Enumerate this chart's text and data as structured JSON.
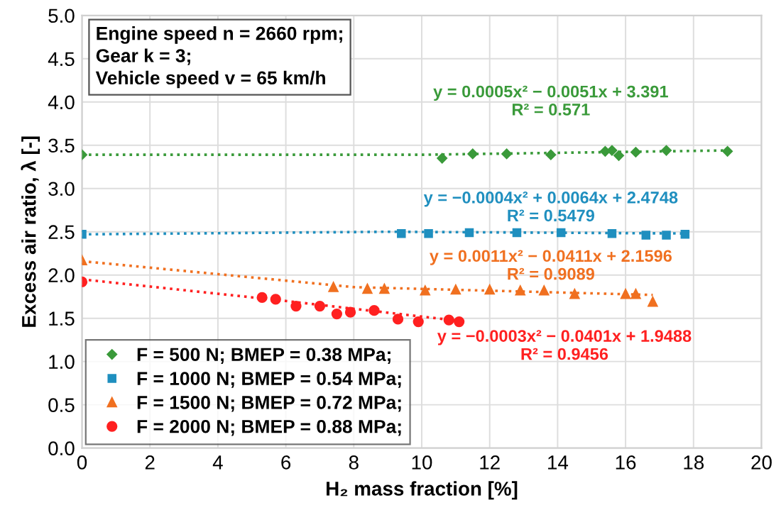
{
  "chart_data": {
    "type": "scatter",
    "xlabel": "H₂ mass fraction [%]",
    "ylabel": "Excess air ratio, λ [-]",
    "xlim": [
      0,
      20
    ],
    "xticks": [
      0,
      2,
      4,
      6,
      8,
      10,
      12,
      14,
      16,
      18,
      20
    ],
    "ylim": [
      0,
      5
    ],
    "yticks": [
      {
        "value": 0,
        "label": "0.0"
      },
      0.5,
      {
        "value": 1,
        "label": "1.0"
      },
      1.5,
      {
        "value": 2,
        "label": "2.0"
      },
      2.5,
      {
        "value": 3,
        "label": "3.0"
      },
      3.5,
      {
        "value": 4,
        "label": "4.0"
      },
      4.5,
      {
        "value": 5,
        "label": "5.0"
      }
    ],
    "grid": true,
    "legend": "bottom left",
    "series": [
      {
        "name": "F = 500 N; BMEP = 0.38 MPa;",
        "color": "#3a9a3a",
        "marker": "diamond",
        "x": [
          0,
          10.6,
          11.5,
          12.5,
          13.8,
          15.4,
          15.6,
          15.8,
          16.3,
          17.2,
          19.0
        ],
        "values": [
          3.39,
          3.35,
          3.4,
          3.4,
          3.39,
          3.43,
          3.44,
          3.38,
          3.42,
          3.44,
          3.43
        ]
      },
      {
        "name": "F = 1000 N; BMEP = 0.54 MPa;",
        "color": "#1f8fbf",
        "marker": "square",
        "x": [
          0,
          9.4,
          10.2,
          11.4,
          12.8,
          14.1,
          15.6,
          16.6,
          17.2,
          17.75
        ],
        "values": [
          2.47,
          2.48,
          2.48,
          2.49,
          2.49,
          2.49,
          2.48,
          2.46,
          2.46,
          2.47
        ]
      },
      {
        "name": "F = 1500 N; BMEP = 0.72 MPa;",
        "color": "#f07020",
        "marker": "triangle",
        "x": [
          0,
          7.4,
          8.4,
          8.9,
          10.1,
          11.0,
          12.0,
          12.9,
          13.6,
          14.5,
          16.0,
          16.3,
          16.8
        ],
        "values": [
          2.17,
          1.86,
          1.84,
          1.84,
          1.82,
          1.83,
          1.83,
          1.82,
          1.82,
          1.78,
          1.78,
          1.78,
          1.69
        ]
      },
      {
        "name": "F = 2000 N; BMEP = 0.88 MPa;",
        "color": "#ff2020",
        "marker": "circle",
        "x": [
          0,
          5.3,
          5.7,
          6.3,
          7.0,
          7.5,
          7.9,
          8.6,
          9.3,
          9.9,
          10.8,
          11.1
        ],
        "values": [
          1.92,
          1.74,
          1.72,
          1.64,
          1.64,
          1.55,
          1.57,
          1.59,
          1.49,
          1.46,
          1.48,
          1.46
        ]
      },
      {
        "type": "line",
        "line_style": "dotted",
        "color": "#3a9a3a",
        "x": [
          0,
          10,
          19.0
        ],
        "values": [
          3.39,
          3.39,
          3.44
        ]
      },
      {
        "type": "line",
        "line_style": "dotted",
        "color": "#1f8fbf",
        "x": [
          0,
          9,
          17.75
        ],
        "values": [
          2.47,
          2.5,
          2.48
        ]
      },
      {
        "type": "line",
        "line_style": "dotted",
        "color": "#f07020",
        "x": [
          0,
          8,
          16.8
        ],
        "values": [
          2.16,
          1.86,
          1.77
        ]
      },
      {
        "type": "line",
        "line_style": "dotted",
        "color": "#ff2020",
        "x": [
          0,
          6,
          11.1
        ],
        "values": [
          1.95,
          1.7,
          1.47
        ]
      }
    ],
    "annotations": [
      "Engine speed n = 2660 rpm;\nGear k = 3;\nVehicle speed v = 65 km/h",
      "y = 0.0005x² − 0.0051x + 3.391\nR² = 0.571",
      "y = −0.0004x² + 0.0064x + 2.4748\nR² = 0.5479",
      "y = 0.0011x² − 0.0411x + 2.1596\nR² = 0.9089",
      "y = −0.0003x² − 0.0401x + 1.9488\nR² = 0.9456"
    ]
  }
}
